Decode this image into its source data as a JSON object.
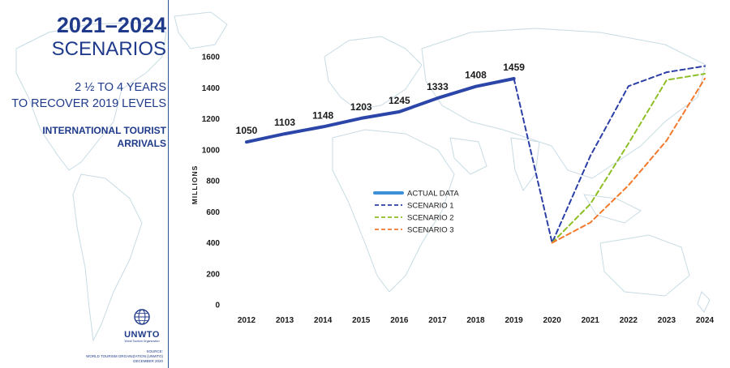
{
  "header": {
    "title_years": "2021–2024",
    "title_sub": "SCENARIOS",
    "recover_line1": "2 ½ TO 4 YEARS",
    "recover_line2": "TO RECOVER 2019 LEVELS",
    "metric_line1": "INTERNATIONAL TOURIST",
    "metric_line2": "ARRIVALS"
  },
  "logo": {
    "name": "UNWTO",
    "tagline": "World Tourism Organization"
  },
  "source": {
    "line1": "SOURCE:",
    "line2": "WORLD TOURISM ORGANIZATION (UNWTO)",
    "line3": "DECEMBER 2020"
  },
  "colors": {
    "primary": "#1f3a8a",
    "actual": "#2b46a8",
    "scenario1": "#2b3fa6",
    "scenario2": "#8fbf26",
    "scenario3": "#f2792b",
    "legend_actual": "#3d8fd6"
  },
  "chart_data": {
    "type": "line",
    "ylabel": "MILLIONS",
    "ylim": [
      0,
      1600
    ],
    "yticks": [
      "0",
      "200",
      "400",
      "600",
      "800",
      "1000",
      "1200",
      "1400",
      "1600"
    ],
    "categories": [
      "2012",
      "2013",
      "2014",
      "2015",
      "2016",
      "2017",
      "2018",
      "2019",
      "2020",
      "2021",
      "2022",
      "2023",
      "2024"
    ],
    "series": [
      {
        "name": "ACTUAL DATA",
        "style": "solid",
        "color": "#2b46a8",
        "x": [
          "2012",
          "2013",
          "2014",
          "2015",
          "2016",
          "2017",
          "2018",
          "2019"
        ],
        "values": [
          1050,
          1103,
          1148,
          1203,
          1245,
          1333,
          1408,
          1459
        ],
        "labels": [
          "1050",
          "1103",
          "1148",
          "1203",
          "1245",
          "1333",
          "1408",
          "1459"
        ]
      },
      {
        "name": "SCENARIO 1",
        "style": "dashed",
        "color": "#2b3fa6",
        "x": [
          "2019",
          "2020",
          "2021",
          "2022",
          "2023",
          "2024"
        ],
        "values": [
          1459,
          400,
          960,
          1410,
          1500,
          1540
        ]
      },
      {
        "name": "SCENARIO 2",
        "style": "dashed",
        "color": "#8fbf26",
        "x": [
          "2020",
          "2021",
          "2022",
          "2023",
          "2024"
        ],
        "values": [
          400,
          650,
          1040,
          1450,
          1490
        ]
      },
      {
        "name": "SCENARIO 3",
        "style": "dashed",
        "color": "#f2792b",
        "x": [
          "2020",
          "2021",
          "2022",
          "2023",
          "2024"
        ],
        "values": [
          400,
          530,
          770,
          1060,
          1460
        ]
      }
    ],
    "legend_position": "center"
  }
}
